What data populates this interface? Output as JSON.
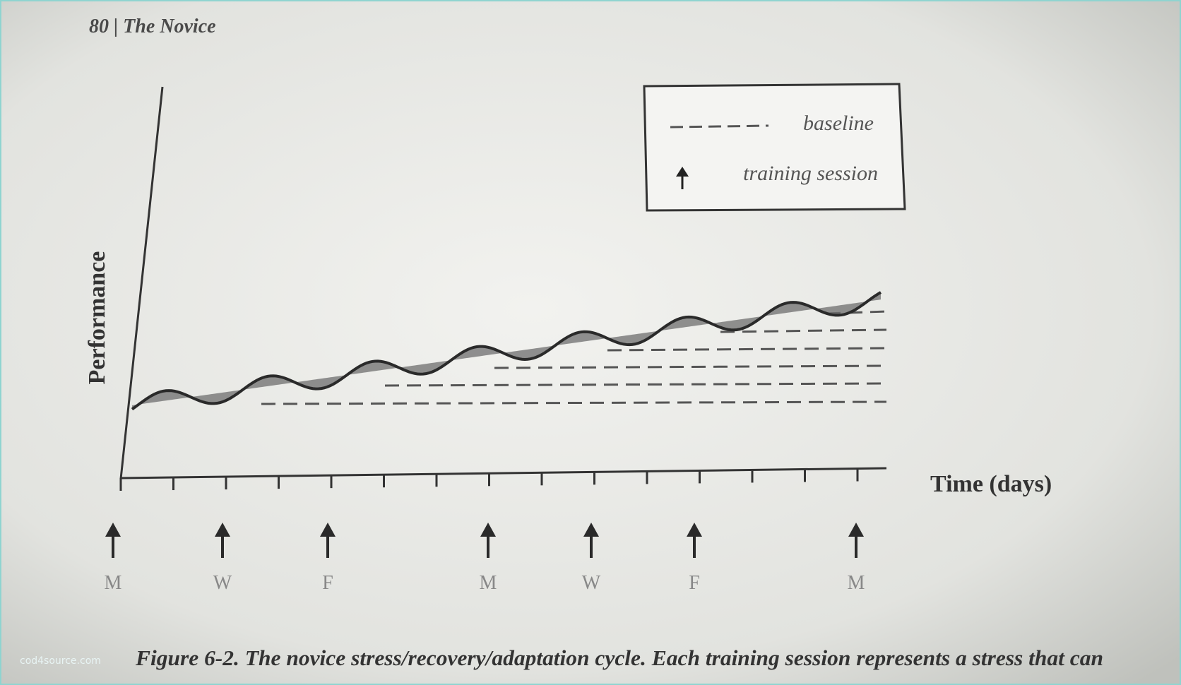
{
  "header": {
    "title": "80 | The Novice"
  },
  "legend": {
    "baseline": "baseline",
    "training_session": "training session"
  },
  "axes": {
    "y_label": "Performance",
    "x_label": "Time (days)"
  },
  "days": [
    "M",
    "W",
    "F",
    "M",
    "W",
    "F",
    "M"
  ],
  "caption": "Figure 6-2. The novice stress/recovery/adaptation cycle. Each training session represents a stress that can",
  "watermark": "cod4source.com"
}
